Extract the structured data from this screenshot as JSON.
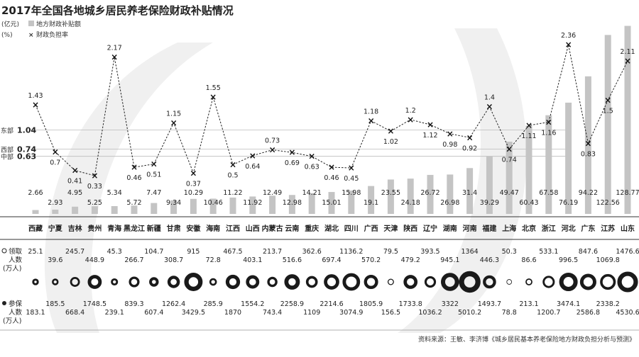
{
  "title": "2017年全国各地城乡居民养老保险财政补贴情况",
  "legend": {
    "bar_unit": "(亿元)",
    "bar_label": "地方财政补贴额",
    "line_unit": "(%)",
    "line_label": "财政负担率"
  },
  "regions": [
    {
      "name": "东部",
      "value": "1.04",
      "rate": 1.04
    },
    {
      "name": "西部",
      "value": "0.74",
      "rate": 0.74
    },
    {
      "name": "中部",
      "value": "0.63",
      "rate": 0.63
    }
  ],
  "row_labels": {
    "recipients": [
      "领取",
      "人数",
      "(万人)"
    ],
    "insured": [
      "参保",
      "人数",
      "(万人)"
    ]
  },
  "source": "资料来源：王敏、李济博《城乡居民基本养老保险地方财政负担分析与预测》",
  "chart_data": {
    "type": "bar",
    "categories": [
      "西藏",
      "宁夏",
      "吉林",
      "贵州",
      "青海",
      "黑龙江",
      "新疆",
      "甘肃",
      "安徽",
      "海南",
      "江西",
      "山西",
      "内蒙古",
      "云南",
      "重庆",
      "湖北",
      "四川",
      "广西",
      "天津",
      "陕西",
      "辽宁",
      "湖南",
      "河南",
      "福建",
      "上海",
      "北京",
      "浙江",
      "河北",
      "广东",
      "江苏",
      "山东"
    ],
    "series": [
      {
        "name": "地方财政补贴额",
        "values": [
          2.66,
          2.93,
          4.95,
          5.25,
          5.34,
          5.72,
          7.47,
          9.34,
          10.29,
          10.46,
          11.22,
          11.92,
          12.49,
          12.98,
          14.21,
          15.01,
          15.98,
          19.1,
          23.55,
          24.18,
          26.72,
          26.98,
          31.4,
          39.29,
          49.47,
          60.43,
          67.58,
          76.19,
          94.22,
          122.56,
          128.77
        ]
      },
      {
        "name": "财政负担率",
        "values": [
          1.43,
          0.7,
          0.41,
          0.33,
          2.17,
          0.46,
          0.51,
          1.15,
          0.37,
          1.55,
          0.5,
          0.64,
          0.73,
          0.69,
          0.63,
          0.46,
          0.45,
          1.18,
          1.02,
          1.2,
          1.12,
          0.98,
          0.92,
          1.4,
          0.74,
          1.11,
          1.16,
          2.36,
          0.83,
          1.5,
          2.11
        ]
      },
      {
        "name": "领取人数",
        "values": [
          25.1,
          39.6,
          245.7,
          448.9,
          45.3,
          266.7,
          104.7,
          308.7,
          915,
          72.8,
          467.5,
          403.1,
          213.7,
          516.6,
          362.6,
          697.4,
          1136.2,
          570.2,
          79.5,
          479.2,
          393.5,
          945.1,
          1364,
          446.3,
          50.3,
          86.6,
          533.1,
          996.5,
          847.6,
          1069.8,
          1476.6
        ]
      },
      {
        "name": "参保人数",
        "values": [
          183.1,
          185.5,
          668.4,
          1748.5,
          239.1,
          839.3,
          607.4,
          1262.4,
          3429.5,
          285.9,
          1870,
          1554.2,
          743.4,
          2258.9,
          1109,
          2214.6,
          3074.9,
          1805.9,
          156.5,
          1733.8,
          1036.2,
          3322,
          5010.2,
          1493.7,
          78.8,
          213.1,
          1200.7,
          3474.1,
          2586.8,
          2338.2,
          4530.6
        ]
      }
    ],
    "bar_labels": [
      "2.66",
      "2.93",
      "4.95",
      "5.25",
      "5.34",
      "5.72",
      "7.47",
      "9.34",
      "10.29",
      "10.46",
      "11.22",
      "11.92",
      "12.49",
      "12.98",
      "14.21",
      "15.01",
      "15.98",
      "19.1",
      "23.55",
      "24.18",
      "26.72",
      "26.98",
      "31.4",
      "39.29",
      "49.47",
      "60.43",
      "67.58",
      "76.19",
      "94.22",
      "122.56",
      "128.77"
    ],
    "rate_labels": [
      "1.43",
      "0.7",
      "0.41",
      "0.33",
      "2.17",
      "0.46",
      "0.51",
      "1.15",
      "0.37",
      "1.55",
      "0.5",
      "0.64",
      "0.73",
      "0.69",
      "0.63",
      "0.46",
      "0.45",
      "1.18",
      "1.02",
      "1.2",
      "1.12",
      "0.98",
      "0.92",
      "1.4",
      "0.74",
      "1.11",
      "1.16",
      "2.36",
      "0.83",
      "1.5",
      "2.11"
    ],
    "recipient_labels": [
      "25.1",
      "39.6",
      "245.7",
      "448.9",
      "45.3",
      "266.7",
      "104.7",
      "308.7",
      "915",
      "72.8",
      "467.5",
      "403.1",
      "213.7",
      "516.6",
      "362.6",
      "697.4",
      "1136.2",
      "570.2",
      "79.5",
      "479.2",
      "393.5",
      "945.1",
      "1364",
      "446.3",
      "50.3",
      "86.6",
      "533.1",
      "996.5",
      "847.6",
      "1069.8",
      "1476.6"
    ],
    "insured_labels": [
      "183.1",
      "185.5",
      "668.4",
      "1748.5",
      "239.1",
      "839.3",
      "607.4",
      "1262.4",
      "3429.5",
      "285.9",
      "1870",
      "1554.2",
      "743.4",
      "2258.9",
      "1109",
      "2214.6",
      "3074.9",
      "1805.9",
      "156.5",
      "1733.8",
      "1036.2",
      "3322",
      "5010.2",
      "1493.7",
      "78.8",
      "213.1",
      "1200.7",
      "3474.1",
      "2586.8",
      "2338.2",
      "4530.6"
    ],
    "colors": {
      "bar": "#c4c4c4",
      "line": "#222222",
      "circle": "#1a1a1a",
      "rule": "#333333"
    }
  }
}
